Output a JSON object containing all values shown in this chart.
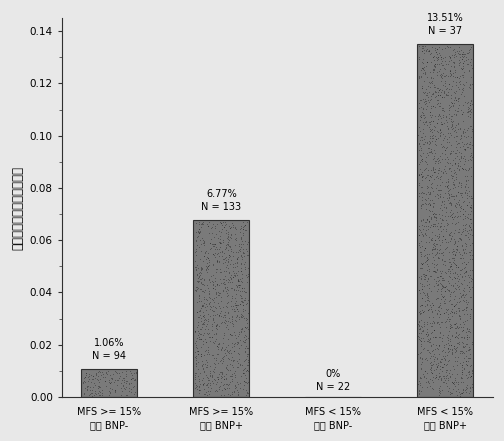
{
  "categories": [
    "MFS >= 15%\nプロ BNP-",
    "MFS >= 15%\nプロ BNP+",
    "MFS < 15%\nプロ BNP-",
    "MFS < 15%\nプロ BNP+"
  ],
  "values": [
    0.0106,
    0.0677,
    0.0,
    0.1351
  ],
  "labels": [
    "1.06%\nN = 94",
    "6.77%\nN = 133",
    "0%\nN = 22",
    "13.51%\nN = 37"
  ],
  "bar_color": "#7a7a7a",
  "bar_edge_color": "#303030",
  "ylabel": "すべての死因の相対発生率",
  "ylim": [
    0,
    0.145
  ],
  "yticks": [
    0.0,
    0.02,
    0.04,
    0.06,
    0.08,
    0.1,
    0.12,
    0.14
  ],
  "background_color": "#e8e8e8",
  "plot_bg_color": "#e8e8e8",
  "label_fontsize": 7.0,
  "ylabel_fontsize": 8.5,
  "tick_fontsize": 7.5,
  "xlabel_fontsize": 7.0,
  "bar_width": 0.5
}
